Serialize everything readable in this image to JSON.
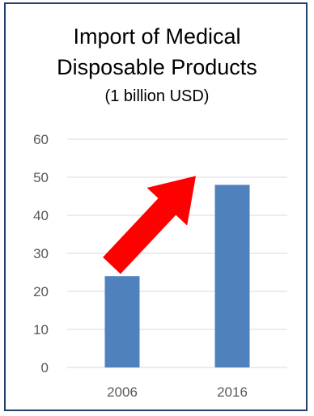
{
  "chart_data": {
    "type": "bar",
    "title_lines": [
      "Import of Medical",
      "Disposable Products"
    ],
    "subtitle": "(1 billion USD)",
    "categories": [
      "2006",
      "2016"
    ],
    "values": [
      24,
      48
    ],
    "ylim": [
      0,
      60
    ],
    "yticks": [
      0,
      10,
      20,
      30,
      40,
      50,
      60
    ],
    "ylabels": [
      "0",
      "10",
      "20",
      "30",
      "40",
      "50",
      "60"
    ],
    "grid": true,
    "legend": "none",
    "bar_color": "#4f81bd",
    "annotation": {
      "type": "arrow",
      "color": "#ff0000",
      "from": "2006",
      "to": "2016"
    }
  }
}
